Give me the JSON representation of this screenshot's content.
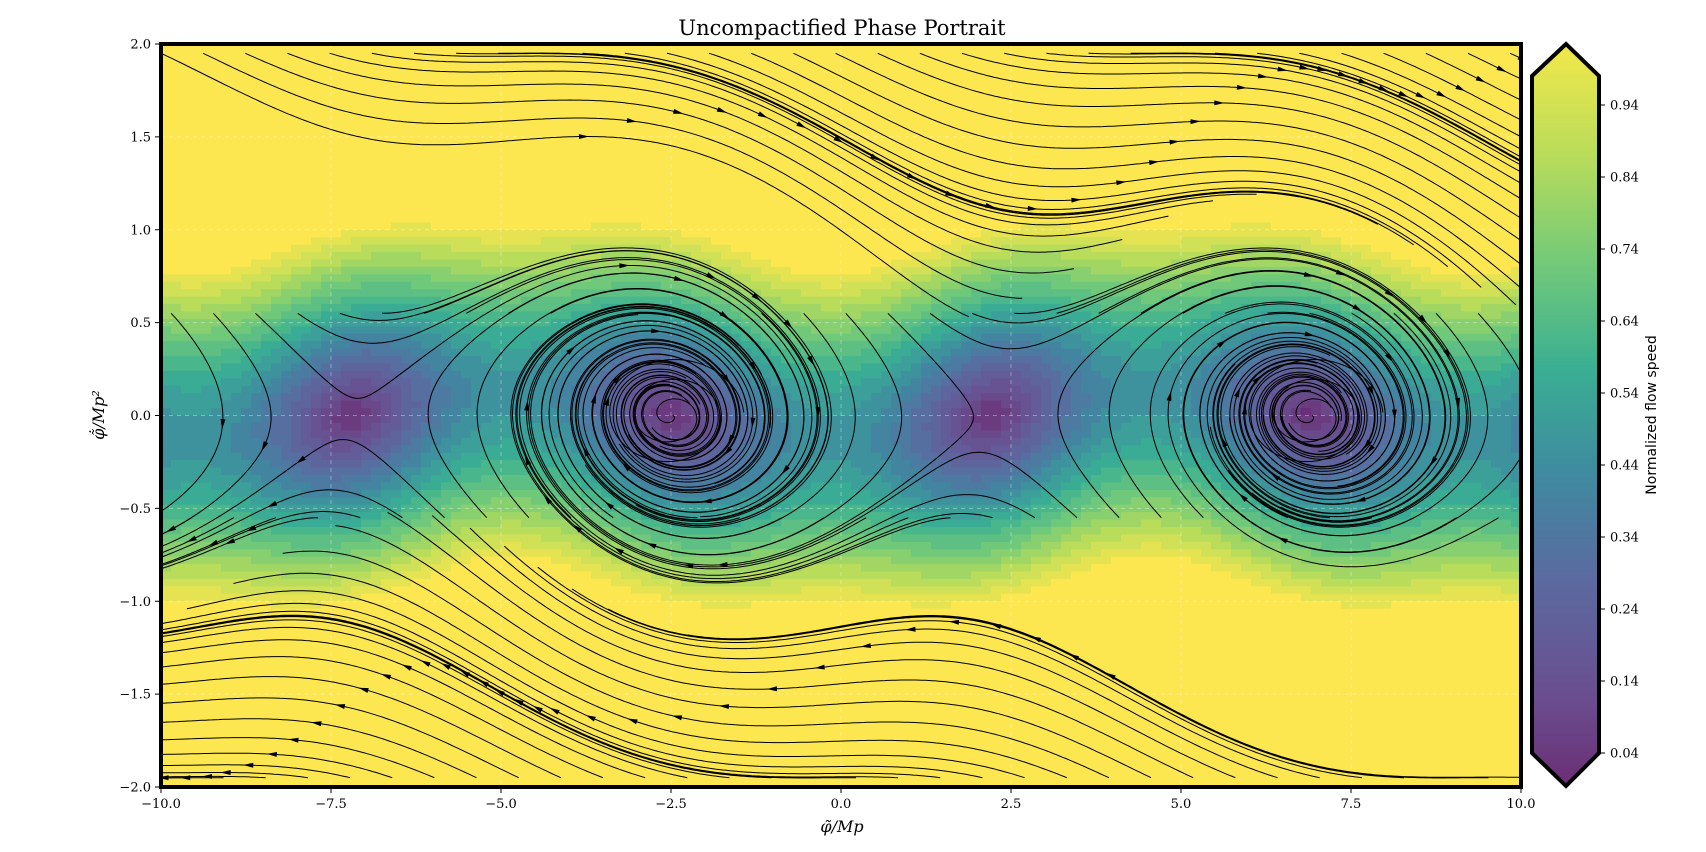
{
  "chart_data": {
    "type": "streamplot",
    "title": "Uncompactified Phase Portrait",
    "xlabel": "φ̃/Mp",
    "ylabel": "φ̃̇/Mp²",
    "xlim": [
      -10,
      10
    ],
    "ylim": [
      -2,
      2
    ],
    "x_ticks": [
      -10.0,
      -7.5,
      -5.0,
      -2.5,
      0.0,
      2.5,
      5.0,
      7.5,
      10.0
    ],
    "x_tick_labels": [
      "−10.0",
      "−7.5",
      "−5.0",
      "−2.5",
      "0.0",
      "2.5",
      "5.0",
      "7.5",
      "10.0"
    ],
    "y_ticks": [
      2.0,
      1.5,
      1.0,
      0.5,
      0.0,
      -0.5,
      -1.0,
      -1.5,
      -2.0
    ],
    "y_tick_labels": [
      "2.0",
      "1.5",
      "1.0",
      "0.5",
      "0.0",
      "−0.5",
      "−1.0",
      "−1.5",
      "−2.0"
    ],
    "grid": true,
    "fixed_points": [
      {
        "x": -2.5,
        "y": 0.0,
        "kind": "spiral"
      },
      {
        "x": 6.9,
        "y": 0.0,
        "kind": "spiral"
      }
    ],
    "colorbar": {
      "label": "Normalized flow speed",
      "ticks": [
        0.94,
        0.84,
        0.74,
        0.64,
        0.54,
        0.44,
        0.34,
        0.24,
        0.14,
        0.04
      ],
      "tick_labels": [
        "0.94",
        "0.84",
        "0.74",
        "0.64",
        "0.54",
        "0.44",
        "0.34",
        "0.24",
        "0.14",
        "0.04"
      ],
      "range": [
        0.04,
        0.94
      ],
      "colormap": "viridis",
      "extend": "both"
    },
    "colors": {
      "high_speed": "#fde725",
      "mid_speed": "#21918c",
      "low_speed": "#440154",
      "streamline": "#000000"
    }
  }
}
